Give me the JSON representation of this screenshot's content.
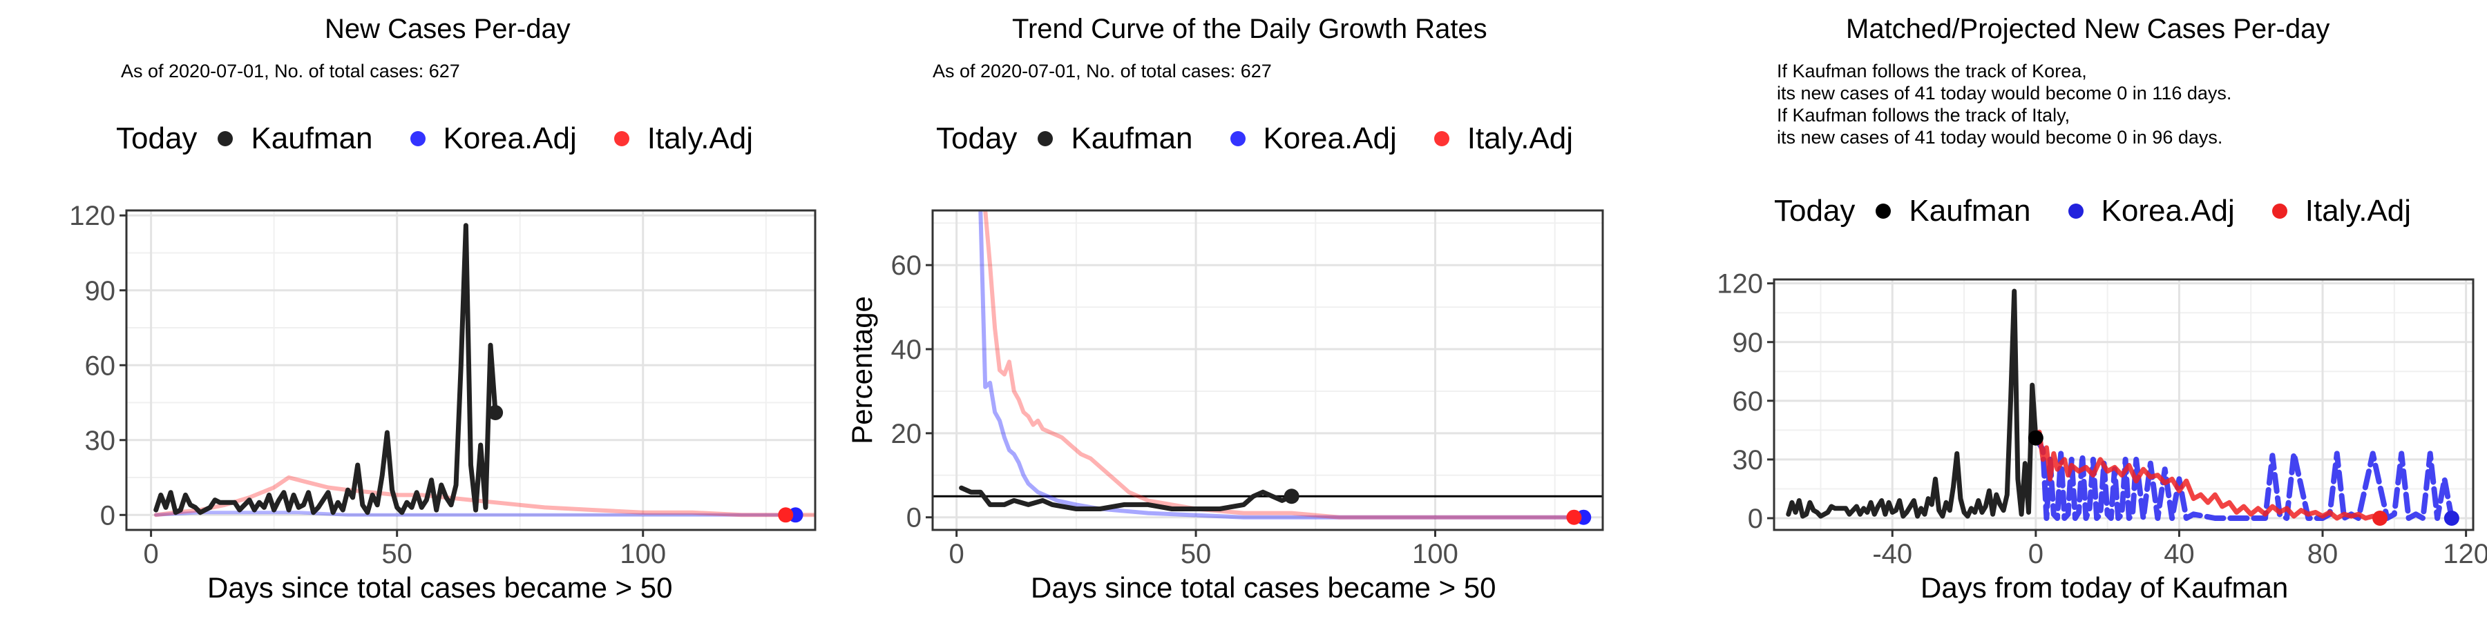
{
  "chart_data": [
    {
      "type": "line",
      "title": "New Cases Per-day",
      "subtitle": "As of 2020-07-01, No. of total cases: 627",
      "xlabel": "Days since total cases became > 50",
      "ylabel": "",
      "xlim": [
        -5,
        135
      ],
      "ylim": [
        -6,
        122
      ],
      "xticks": [
        0,
        50,
        100
      ],
      "yticks": [
        0,
        30,
        60,
        90,
        120
      ],
      "legend": {
        "title": "Today",
        "position": "top",
        "entries": [
          {
            "name": "Kaufman",
            "color": "#222222"
          },
          {
            "name": "Korea.Adj",
            "color": "#2222ff"
          },
          {
            "name": "Italy.Adj",
            "color": "#ff2222"
          }
        ]
      },
      "series": [
        {
          "name": "Kaufman",
          "color": "#222222",
          "x": [
            1,
            2,
            3,
            4,
            5,
            6,
            7,
            8,
            9,
            10,
            11,
            12,
            13,
            14,
            15,
            16,
            17,
            18,
            19,
            20,
            21,
            22,
            23,
            24,
            25,
            26,
            27,
            28,
            29,
            30,
            31,
            32,
            33,
            34,
            35,
            36,
            37,
            38,
            39,
            40,
            41,
            42,
            43,
            44,
            45,
            46,
            47,
            48,
            49,
            50,
            51,
            52,
            53,
            54,
            55,
            56,
            57,
            58,
            59,
            60,
            61,
            62,
            63,
            64,
            65,
            66,
            67,
            68,
            69,
            70
          ],
          "y": [
            2,
            8,
            3,
            9,
            1,
            2,
            8,
            4,
            3,
            1,
            2,
            3,
            6,
            5,
            5,
            5,
            5,
            2,
            4,
            6,
            2,
            5,
            3,
            8,
            2,
            6,
            9,
            2,
            8,
            3,
            4,
            9,
            1,
            3,
            6,
            9,
            1,
            5,
            2,
            10,
            7,
            20,
            4,
            1,
            8,
            4,
            16,
            33,
            10,
            3,
            1,
            5,
            3,
            9,
            3,
            6,
            14,
            2,
            12,
            7,
            4,
            12,
            60,
            116,
            20,
            2,
            28,
            3,
            68,
            41
          ]
        },
        {
          "name": "Korea.Adj",
          "color": "#2222ff",
          "x": [
            1,
            10,
            20,
            30,
            40,
            50,
            60,
            70,
            80,
            90,
            100,
            110,
            120,
            130,
            132
          ],
          "y": [
            0,
            1,
            1,
            1,
            0,
            0,
            0,
            0,
            0,
            0,
            0,
            0,
            0,
            0,
            0
          ]
        },
        {
          "name": "Italy.Adj",
          "color": "#ff2222",
          "x": [
            1,
            5,
            10,
            15,
            20,
            25,
            28,
            32,
            36,
            40,
            45,
            50,
            55,
            60,
            65,
            70,
            75,
            80,
            90,
            100,
            110,
            120,
            130,
            135
          ],
          "y": [
            0,
            1,
            2,
            4,
            7,
            11,
            15,
            13,
            11,
            10,
            9,
            8,
            8,
            7,
            6,
            5,
            4,
            3,
            2,
            1,
            1,
            0,
            0,
            0
          ]
        }
      ],
      "endpoints": [
        {
          "name": "Kaufman",
          "x": 70,
          "y": 41,
          "color": "#222222"
        },
        {
          "name": "Korea.Adj",
          "x": 131,
          "y": 0,
          "color": "#2222ff"
        },
        {
          "name": "Italy.Adj",
          "x": 129,
          "y": 0,
          "color": "#ff2222"
        }
      ]
    },
    {
      "type": "line",
      "title": "Trend Curve of the Daily Growth Rates",
      "subtitle": "As of 2020-07-01, No. of total cases: 627",
      "xlabel": "Days since total cases became > 50",
      "ylabel": "Percentage",
      "xlim": [
        -5,
        135
      ],
      "ylim": [
        -3,
        73
      ],
      "xticks": [
        0,
        50,
        100
      ],
      "yticks": [
        0,
        20,
        40,
        60
      ],
      "hline": 5,
      "legend": {
        "title": "Today",
        "position": "top",
        "entries": [
          {
            "name": "Kaufman",
            "color": "#222222"
          },
          {
            "name": "Korea.Adj",
            "color": "#2222ff"
          },
          {
            "name": "Italy.Adj",
            "color": "#ff2222"
          }
        ]
      },
      "series": [
        {
          "name": "Kaufman",
          "color": "#222222",
          "x": [
            1,
            3,
            5,
            7,
            10,
            12,
            15,
            18,
            20,
            25,
            30,
            35,
            40,
            45,
            50,
            55,
            60,
            62,
            64,
            66,
            68,
            70
          ],
          "y": [
            7,
            6,
            6,
            3,
            3,
            4,
            3,
            4,
            3,
            2,
            2,
            3,
            3,
            2,
            2,
            2,
            3,
            5,
            6,
            5,
            4,
            5
          ]
        },
        {
          "name": "Korea.Adj",
          "color": "#2222ff",
          "x": [
            5,
            6,
            7,
            8,
            9,
            10,
            11,
            12,
            13,
            14,
            15,
            17,
            19,
            21,
            25,
            30,
            40,
            60,
            80,
            100,
            130
          ],
          "y": [
            73,
            31,
            32,
            25,
            23,
            19,
            16,
            15,
            13,
            10,
            8,
            6,
            5,
            4,
            3,
            2,
            1,
            0,
            0,
            0,
            0
          ]
        },
        {
          "name": "Italy.Adj",
          "color": "#ff2222",
          "x": [
            6,
            7,
            8,
            9,
            10,
            11,
            12,
            13,
            14,
            15,
            16,
            17,
            18,
            20,
            22,
            24,
            26,
            28,
            30,
            33,
            36,
            40,
            45,
            50,
            60,
            70,
            80,
            100,
            130
          ],
          "y": [
            73,
            60,
            45,
            35,
            34,
            37,
            30,
            28,
            25,
            24,
            22,
            23,
            21,
            20,
            19,
            17,
            15,
            14,
            12,
            9,
            6,
            4,
            3,
            2,
            1,
            1,
            0,
            0,
            0
          ]
        }
      ],
      "endpoints": [
        {
          "name": "Kaufman",
          "x": 70,
          "y": 5,
          "color": "#222222"
        },
        {
          "name": "Korea.Adj",
          "x": 131,
          "y": 0,
          "color": "#2222ff"
        },
        {
          "name": "Italy.Adj",
          "x": 129,
          "y": 0,
          "color": "#ff2222"
        }
      ]
    },
    {
      "type": "line",
      "title": "Matched/Projected New Cases Per-day",
      "notes": [
        "If Kaufman follows the track of Korea,",
        "its new cases of 41 today would become 0 in 116 days.",
        "If Kaufman follows the track of Italy,",
        "its new cases of 41 today would become 0 in 96 days."
      ],
      "xlabel": "Days from today of Kaufman",
      "ylabel": "",
      "xlim": [
        -73,
        122
      ],
      "ylim": [
        -6,
        122
      ],
      "xticks": [
        -40,
        0,
        40,
        80,
        120
      ],
      "yticks": [
        0,
        30,
        60,
        90,
        120
      ],
      "legend": {
        "title": "Today",
        "position": "top",
        "entries": [
          {
            "name": "Kaufman",
            "color": "#000000"
          },
          {
            "name": "Korea.Adj",
            "color": "#2222dd"
          },
          {
            "name": "Italy.Adj",
            "color": "#ee2222"
          }
        ]
      },
      "series": [
        {
          "name": "Kaufman",
          "color": "#222222",
          "x": [
            -69,
            -68,
            -67,
            -66,
            -65,
            -64,
            -63,
            -62,
            -61,
            -60,
            -59,
            -58,
            -57,
            -56,
            -55,
            -54,
            -53,
            -52,
            -51,
            -50,
            -49,
            -48,
            -47,
            -46,
            -45,
            -44,
            -43,
            -42,
            -41,
            -40,
            -39,
            -38,
            -37,
            -36,
            -35,
            -34,
            -33,
            -32,
            -31,
            -30,
            -29,
            -28,
            -27,
            -26,
            -25,
            -24,
            -23,
            -22,
            -21,
            -20,
            -19,
            -18,
            -17,
            -16,
            -15,
            -14,
            -13,
            -12,
            -11,
            -10,
            -9,
            -8,
            -7,
            -6,
            -5,
            -4,
            -3,
            -2,
            -1,
            0
          ],
          "y": [
            2,
            8,
            3,
            9,
            1,
            2,
            8,
            4,
            3,
            1,
            2,
            3,
            6,
            5,
            5,
            5,
            5,
            2,
            4,
            6,
            2,
            5,
            3,
            8,
            2,
            6,
            9,
            2,
            8,
            3,
            4,
            9,
            1,
            3,
            6,
            9,
            1,
            5,
            2,
            10,
            7,
            20,
            4,
            1,
            8,
            4,
            16,
            33,
            10,
            3,
            1,
            5,
            3,
            9,
            3,
            6,
            14,
            2,
            12,
            7,
            4,
            12,
            60,
            116,
            20,
            2,
            28,
            3,
            68,
            41
          ]
        },
        {
          "name": "Korea.Adj",
          "color": "#2222ee",
          "x": [
            0,
            2,
            3,
            4,
            5,
            6,
            7,
            8,
            9,
            10,
            11,
            12,
            13,
            14,
            15,
            16,
            17,
            18,
            19,
            20,
            21,
            22,
            23,
            24,
            25,
            26,
            27,
            28,
            30,
            32,
            34,
            36,
            38,
            40,
            42,
            44,
            50,
            58,
            64,
            66,
            68,
            70,
            72,
            76,
            80,
            82,
            84,
            86,
            88,
            90,
            94,
            98,
            100,
            102,
            104,
            106,
            108,
            110,
            112,
            114,
            116
          ],
          "y": [
            41,
            35,
            0,
            30,
            2,
            0,
            33,
            0,
            2,
            30,
            0,
            3,
            32,
            0,
            5,
            30,
            0,
            2,
            28,
            2,
            0,
            25,
            0,
            2,
            30,
            0,
            2,
            30,
            0,
            28,
            0,
            25,
            0,
            20,
            0,
            2,
            0,
            0,
            0,
            32,
            2,
            0,
            33,
            0,
            0,
            2,
            33,
            0,
            2,
            0,
            33,
            0,
            2,
            33,
            0,
            2,
            0,
            33,
            0,
            20,
            0
          ]
        },
        {
          "name": "Italy.Adj",
          "color": "#ee2222",
          "x": [
            0,
            1,
            2,
            3,
            4,
            5,
            6,
            7,
            8,
            9,
            10,
            12,
            14,
            16,
            18,
            20,
            22,
            24,
            26,
            28,
            30,
            32,
            34,
            36,
            38,
            40,
            42,
            44,
            46,
            48,
            50,
            52,
            54,
            56,
            58,
            60,
            62,
            64,
            66,
            68,
            70,
            72,
            74,
            76,
            78,
            80,
            82,
            84,
            86,
            88,
            90,
            92,
            94,
            96
          ],
          "y": [
            41,
            44,
            30,
            36,
            20,
            33,
            25,
            28,
            30,
            22,
            27,
            24,
            26,
            22,
            30,
            24,
            26,
            22,
            27,
            19,
            25,
            21,
            22,
            18,
            20,
            14,
            19,
            10,
            12,
            8,
            12,
            6,
            8,
            3,
            6,
            2,
            5,
            2,
            6,
            3,
            5,
            1,
            4,
            2,
            3,
            1,
            3,
            0,
            2,
            1,
            2,
            0,
            1,
            0
          ]
        }
      ],
      "endpoints": [
        {
          "name": "Kaufman",
          "x": 0,
          "y": 41,
          "color": "#000000"
        },
        {
          "name": "Korea.Adj",
          "x": 116,
          "y": 0,
          "color": "#2222dd"
        },
        {
          "name": "Italy.Adj",
          "x": 96,
          "y": 0,
          "color": "#ee2222"
        }
      ]
    }
  ]
}
